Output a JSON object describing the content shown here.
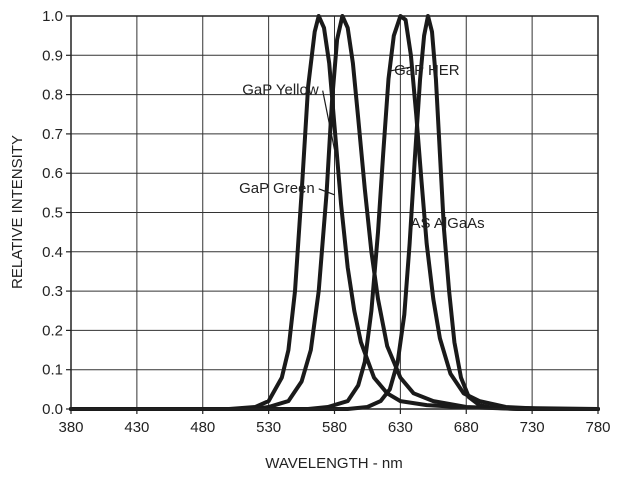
{
  "chart_data": {
    "type": "line",
    "xlabel": "WAVELENGTH - nm",
    "ylabel": "RELATIVE INTENSITY",
    "xlim": [
      380,
      780
    ],
    "ylim": [
      0.0,
      1.0
    ],
    "x_ticks": [
      "380",
      "430",
      "480",
      "530",
      "580",
      "630",
      "680",
      "730",
      "780"
    ],
    "y_ticks": [
      "0.0",
      "0.1",
      "0.2",
      "0.3",
      "0.4",
      "0.5",
      "0.6",
      "0.7",
      "0.8",
      "0.9",
      "1.0"
    ],
    "grid": true,
    "series": [
      {
        "name": "GaP Green",
        "color": "#1a1a1a",
        "points": [
          [
            380,
            0
          ],
          [
            500,
            0
          ],
          [
            520,
            0.005
          ],
          [
            530,
            0.02
          ],
          [
            540,
            0.08
          ],
          [
            545,
            0.15
          ],
          [
            550,
            0.3
          ],
          [
            555,
            0.55
          ],
          [
            560,
            0.82
          ],
          [
            565,
            0.96
          ],
          [
            568,
            1.0
          ],
          [
            572,
            0.97
          ],
          [
            576,
            0.88
          ],
          [
            580,
            0.72
          ],
          [
            585,
            0.52
          ],
          [
            590,
            0.36
          ],
          [
            595,
            0.25
          ],
          [
            600,
            0.17
          ],
          [
            610,
            0.08
          ],
          [
            620,
            0.04
          ],
          [
            630,
            0.02
          ],
          [
            650,
            0.01
          ],
          [
            680,
            0.004
          ],
          [
            780,
            0
          ]
        ]
      },
      {
        "name": "GaP Yellow",
        "color": "#1a1a1a",
        "points": [
          [
            380,
            0
          ],
          [
            520,
            0
          ],
          [
            530,
            0.005
          ],
          [
            545,
            0.02
          ],
          [
            555,
            0.07
          ],
          [
            562,
            0.15
          ],
          [
            568,
            0.3
          ],
          [
            574,
            0.55
          ],
          [
            578,
            0.78
          ],
          [
            582,
            0.94
          ],
          [
            586,
            1.0
          ],
          [
            590,
            0.97
          ],
          [
            594,
            0.88
          ],
          [
            598,
            0.74
          ],
          [
            603,
            0.56
          ],
          [
            608,
            0.4
          ],
          [
            613,
            0.28
          ],
          [
            620,
            0.16
          ],
          [
            630,
            0.08
          ],
          [
            640,
            0.04
          ],
          [
            655,
            0.02
          ],
          [
            680,
            0.005
          ],
          [
            720,
            0
          ],
          [
            780,
            0
          ]
        ]
      },
      {
        "name": "GaP HER",
        "color": "#1a1a1a",
        "points": [
          [
            380,
            0
          ],
          [
            560,
            0
          ],
          [
            575,
            0.005
          ],
          [
            590,
            0.02
          ],
          [
            598,
            0.06
          ],
          [
            603,
            0.12
          ],
          [
            608,
            0.25
          ],
          [
            613,
            0.45
          ],
          [
            617,
            0.65
          ],
          [
            621,
            0.84
          ],
          [
            625,
            0.95
          ],
          [
            630,
            1.0
          ],
          [
            634,
            0.99
          ],
          [
            638,
            0.9
          ],
          [
            642,
            0.75
          ],
          [
            646,
            0.58
          ],
          [
            650,
            0.42
          ],
          [
            655,
            0.28
          ],
          [
            660,
            0.18
          ],
          [
            668,
            0.09
          ],
          [
            678,
            0.04
          ],
          [
            690,
            0.02
          ],
          [
            710,
            0.005
          ],
          [
            740,
            0
          ],
          [
            780,
            0
          ]
        ]
      },
      {
        "name": "AS AlGaAs",
        "color": "#1a1a1a",
        "points": [
          [
            380,
            0
          ],
          [
            590,
            0
          ],
          [
            605,
            0.005
          ],
          [
            615,
            0.02
          ],
          [
            622,
            0.05
          ],
          [
            628,
            0.12
          ],
          [
            633,
            0.24
          ],
          [
            637,
            0.42
          ],
          [
            641,
            0.64
          ],
          [
            645,
            0.84
          ],
          [
            648,
            0.95
          ],
          [
            651,
            1.0
          ],
          [
            654,
            0.96
          ],
          [
            657,
            0.84
          ],
          [
            660,
            0.65
          ],
          [
            663,
            0.46
          ],
          [
            667,
            0.3
          ],
          [
            671,
            0.17
          ],
          [
            676,
            0.08
          ],
          [
            682,
            0.03
          ],
          [
            690,
            0.01
          ],
          [
            700,
            0.003
          ],
          [
            720,
            0
          ],
          [
            780,
            0
          ]
        ]
      }
    ],
    "annotations": [
      {
        "text": "GaP Yellow",
        "x": 568,
        "y": 0.8,
        "target": [
          580,
          0.66
        ]
      },
      {
        "text": "GaP Green",
        "x": 565,
        "y": 0.55,
        "target": [
          580,
          0.545
        ]
      },
      {
        "text": "GaP HER",
        "x": 675,
        "y": 0.85,
        "target": [
          638,
          0.87
        ]
      },
      {
        "text": "AS AlGaAs",
        "x": 694,
        "y": 0.46,
        "target": null
      }
    ]
  }
}
